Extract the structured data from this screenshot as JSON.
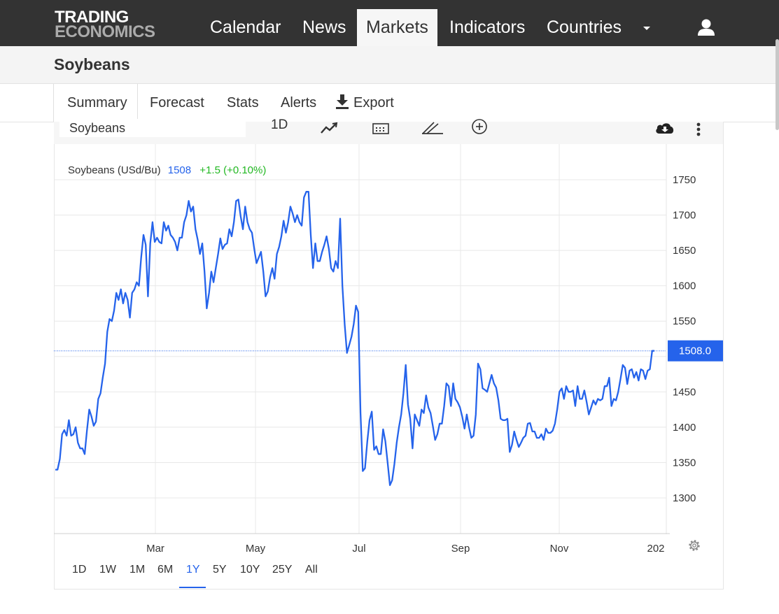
{
  "header": {
    "logo_line1": "TRADING",
    "logo_line2": "ECONOMICS",
    "nav": [
      {
        "label": "Calendar"
      },
      {
        "label": "News"
      },
      {
        "label": "Markets"
      },
      {
        "label": "Indicators"
      },
      {
        "label": "Countries"
      }
    ],
    "active_nav": "Markets"
  },
  "page": {
    "title": "Soybeans"
  },
  "tabs": {
    "summary": "Summary",
    "forecast": "Forecast",
    "stats": "Stats",
    "alerts": "Alerts",
    "export": "Export"
  },
  "toolbar": {
    "search_value": "Soybeans",
    "interval": "1D",
    "icons": [
      "line-chart-icon",
      "calendar-icon",
      "draw-icon",
      "compare-add-icon",
      "download-cloud-icon",
      "more-vertical-icon"
    ]
  },
  "quote": {
    "name": "Soybeans (USd/Bu)",
    "price": "1508",
    "change": "+1.5 (+0.10%)",
    "price_color": "#2563eb",
    "change_color": "#22b822"
  },
  "chart_data": {
    "type": "line",
    "ylim": [
      1260,
      1800
    ],
    "yticks": [
      1300,
      1350,
      1400,
      1450,
      1500,
      1550,
      1600,
      1650,
      1700,
      1750
    ],
    "ytick_labels": [
      "1300",
      "1350",
      "1400",
      "1450",
      "1550",
      "1600",
      "1650",
      "1700",
      "1750"
    ],
    "xtick_labels": [
      "Mar",
      "May",
      "Jul",
      "Sep",
      "Nov",
      "202"
    ],
    "last_value_label": "1508.0",
    "last_value": 1508,
    "line_color": "#2563eb",
    "series": [
      {
        "values": [
          1340,
          1340,
          1355,
          1390,
          1396,
          1388,
          1410,
          1388,
          1390,
          1400,
          1378,
          1370,
          1370,
          1362,
          1395,
          1425,
          1415,
          1402,
          1408,
          1440,
          1448,
          1470,
          1490,
          1535,
          1553,
          1550,
          1565,
          1590,
          1580,
          1595,
          1575,
          1590,
          1580,
          1555,
          1590,
          1595,
          1605,
          1600,
          1640,
          1672,
          1658,
          1585,
          1660,
          1690,
          1662,
          1668,
          1662,
          1660,
          1690,
          1678,
          1685,
          1672,
          1668,
          1662,
          1650,
          1668,
          1668,
          1690,
          1700,
          1720,
          1705,
          1712,
          1680,
          1665,
          1645,
          1660,
          1620,
          1568,
          1590,
          1620,
          1605,
          1625,
          1645,
          1667,
          1652,
          1658,
          1660,
          1680,
          1670,
          1690,
          1720,
          1722,
          1698,
          1680,
          1712,
          1690,
          1680,
          1675,
          1652,
          1632,
          1640,
          1648,
          1620,
          1585,
          1592,
          1612,
          1625,
          1610,
          1645,
          1655,
          1670,
          1692,
          1675,
          1690,
          1712,
          1702,
          1690,
          1700,
          1690,
          1685,
          1725,
          1733,
          1733,
          1672,
          1625,
          1660,
          1635,
          1635,
          1648,
          1658,
          1670,
          1652,
          1625,
          1620,
          1635,
          1625,
          1695,
          1600,
          1545,
          1505,
          1516,
          1528,
          1546,
          1572,
          1563,
          1420,
          1338,
          1342,
          1380,
          1410,
          1422,
          1368,
          1373,
          1362,
          1362,
          1397,
          1380,
          1350,
          1318,
          1325,
          1348,
          1378,
          1400,
          1418,
          1448,
          1488,
          1432,
          1412,
          1370,
          1418,
          1410,
          1402,
          1425,
          1420,
          1445,
          1428,
          1420,
          1402,
          1382,
          1390,
          1405,
          1405,
          1430,
          1462,
          1458,
          1430,
          1462,
          1440,
          1435,
          1428,
          1415,
          1398,
          1418,
          1400,
          1385,
          1388,
          1418,
          1490,
          1482,
          1455,
          1453,
          1450,
          1462,
          1474,
          1462,
          1456,
          1438,
          1412,
          1410,
          1410,
          1412,
          1365,
          1375,
          1394,
          1382,
          1372,
          1378,
          1385,
          1388,
          1405,
          1406,
          1394,
          1394,
          1385,
          1385,
          1390,
          1382,
          1398,
          1392,
          1392,
          1395,
          1405,
          1425,
          1450,
          1455,
          1440,
          1458,
          1450,
          1450,
          1452,
          1430,
          1458,
          1440,
          1440,
          1452,
          1436,
          1418,
          1428,
          1438,
          1432,
          1440,
          1438,
          1440,
          1458,
          1458,
          1470,
          1430,
          1440,
          1438,
          1450,
          1468,
          1488,
          1484,
          1461,
          1480,
          1482,
          1470,
          1478,
          1466,
          1482,
          1480,
          1468,
          1480,
          1482,
          1508,
          1508
        ]
      }
    ]
  },
  "ranges": [
    "1D",
    "1W",
    "1M",
    "6M",
    "1Y",
    "5Y",
    "10Y",
    "25Y",
    "All"
  ],
  "active_range": "1Y"
}
